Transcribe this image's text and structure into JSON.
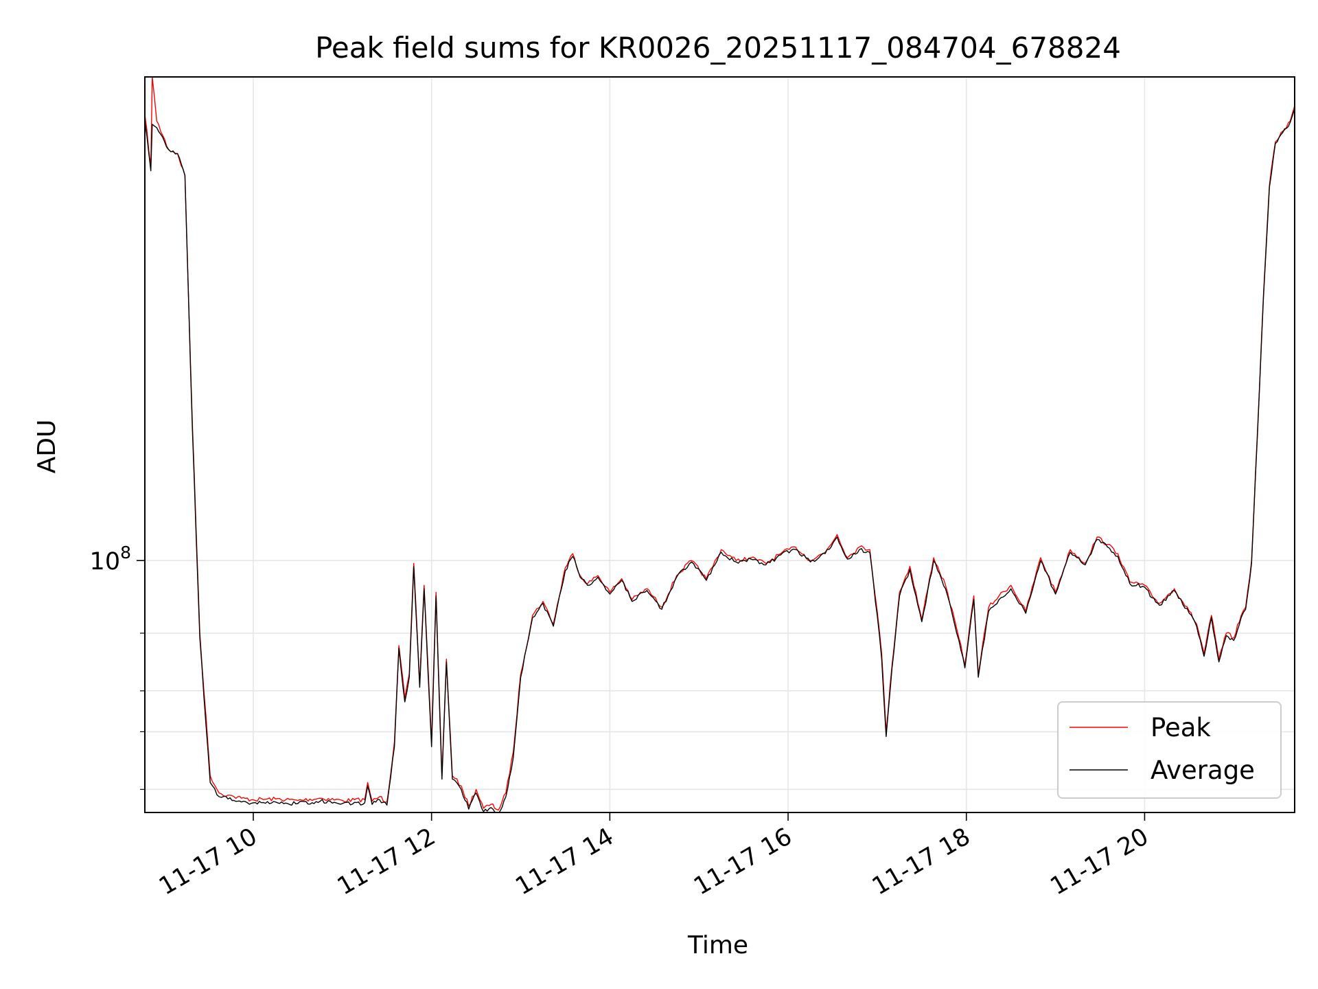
{
  "chart_data": {
    "type": "line",
    "title": "Peak field sums for KR0026_20251117_084704_678824",
    "xlabel": "Time",
    "ylabel": "ADU",
    "yscale": "log",
    "xlim": [
      "2025-11-17 08:47",
      "2025-11-17 21:41"
    ],
    "ylim": [
      17000000,
      3000000000
    ],
    "x_ticks": [
      "11-17 10",
      "11-17 12",
      "11-17 14",
      "11-17 16",
      "11-17 18",
      "11-17 20"
    ],
    "y_ticks": [
      {
        "value": 100000000,
        "base": "10",
        "exponent": "8"
      }
    ],
    "y_minor_ticks": [
      20000000,
      30000000,
      40000000,
      60000000
    ],
    "grid": true,
    "legend_position": "lower right",
    "series": [
      {
        "name": "Peak",
        "color": "#ff0000",
        "x": [
          "2025-11-17 08:47",
          "2025-11-17 08:51",
          "2025-11-17 08:52",
          "2025-11-17 08:55",
          "2025-11-17 09:03",
          "2025-11-17 09:09",
          "2025-11-17 09:14",
          "2025-11-17 09:19",
          "2025-11-17 09:24",
          "2025-11-17 09:31",
          "2025-11-17 09:37",
          "2025-11-17 09:43",
          "2025-11-17 09:47",
          "2025-11-17 09:52",
          "2025-11-17 10:00",
          "2025-11-17 10:15",
          "2025-11-17 10:30",
          "2025-11-17 10:45",
          "2025-11-17 11:00",
          "2025-11-17 11:15",
          "2025-11-17 11:17",
          "2025-11-17 11:20",
          "2025-11-17 11:25",
          "2025-11-17 11:30",
          "2025-11-17 11:35",
          "2025-11-17 11:38",
          "2025-11-17 11:42",
          "2025-11-17 11:45",
          "2025-11-17 11:48",
          "2025-11-17 11:52",
          "2025-11-17 11:55",
          "2025-11-17 12:00",
          "2025-11-17 12:03",
          "2025-11-17 12:07",
          "2025-11-17 12:10",
          "2025-11-17 12:14",
          "2025-11-17 12:20",
          "2025-11-17 12:25",
          "2025-11-17 12:30",
          "2025-11-17 12:35",
          "2025-11-17 12:40",
          "2025-11-17 12:45",
          "2025-11-17 12:50",
          "2025-11-17 12:55",
          "2025-11-17 13:00",
          "2025-11-17 13:08",
          "2025-11-17 13:15",
          "2025-11-17 13:22",
          "2025-11-17 13:30",
          "2025-11-17 13:35",
          "2025-11-17 13:40",
          "2025-11-17 13:45",
          "2025-11-17 13:52",
          "2025-11-17 14:00",
          "2025-11-17 14:08",
          "2025-11-17 14:15",
          "2025-11-17 14:25",
          "2025-11-17 14:35",
          "2025-11-17 14:45",
          "2025-11-17 14:55",
          "2025-11-17 15:05",
          "2025-11-17 15:15",
          "2025-11-17 15:25",
          "2025-11-17 15:35",
          "2025-11-17 15:45",
          "2025-11-17 15:55",
          "2025-11-17 16:05",
          "2025-11-17 16:15",
          "2025-11-17 16:25",
          "2025-11-17 16:33",
          "2025-11-17 16:40",
          "2025-11-17 16:48",
          "2025-11-17 16:55",
          "2025-11-17 17:00",
          "2025-11-17 17:03",
          "2025-11-17 17:06",
          "2025-11-17 17:10",
          "2025-11-17 17:15",
          "2025-11-17 17:22",
          "2025-11-17 17:30",
          "2025-11-17 17:38",
          "2025-11-17 17:46",
          "2025-11-17 17:55",
          "2025-11-17 17:59",
          "2025-11-17 18:05",
          "2025-11-17 18:08",
          "2025-11-17 18:15",
          "2025-11-17 18:22",
          "2025-11-17 18:30",
          "2025-11-17 18:40",
          "2025-11-17 18:50",
          "2025-11-17 19:00",
          "2025-11-17 19:10",
          "2025-11-17 19:20",
          "2025-11-17 19:28",
          "2025-11-17 19:35",
          "2025-11-17 19:42",
          "2025-11-17 19:50",
          "2025-11-17 20:00",
          "2025-11-17 20:05",
          "2025-11-17 20:10",
          "2025-11-17 20:20",
          "2025-11-17 20:30",
          "2025-11-17 20:35",
          "2025-11-17 20:40",
          "2025-11-17 20:45",
          "2025-11-17 20:50",
          "2025-11-17 20:55",
          "2025-11-17 21:00",
          "2025-11-17 21:05",
          "2025-11-17 21:08",
          "2025-11-17 21:12",
          "2025-11-17 21:16",
          "2025-11-17 21:20",
          "2025-11-17 21:24",
          "2025-11-17 21:28",
          "2025-11-17 21:33",
          "2025-11-17 21:38",
          "2025-11-17 21:41"
        ],
        "values": [
          2300000000,
          1600000000,
          3000000000,
          2200000000,
          1800000000,
          1750000000,
          1500000000,
          260000000,
          60000000,
          22000000,
          19500000,
          19200000,
          19000000,
          18800000,
          18600000,
          18700000,
          18500000,
          18800000,
          18500000,
          18600000,
          21000000,
          18400000,
          19000000,
          18300000,
          28000000,
          55000000,
          38000000,
          45000000,
          98000000,
          42000000,
          84000000,
          28000000,
          80000000,
          22000000,
          50000000,
          22000000,
          20500000,
          17800000,
          20000000,
          17500000,
          18000000,
          17300000,
          19500000,
          26000000,
          45000000,
          68000000,
          75000000,
          64000000,
          95000000,
          105000000,
          90000000,
          85000000,
          90000000,
          80000000,
          88000000,
          76000000,
          82000000,
          72000000,
          90000000,
          100000000,
          88000000,
          108000000,
          100000000,
          102000000,
          98000000,
          105000000,
          110000000,
          100000000,
          106000000,
          120000000,
          102000000,
          110000000,
          108000000,
          70000000,
          52000000,
          30000000,
          48000000,
          80000000,
          96000000,
          66000000,
          102000000,
          84000000,
          58000000,
          48000000,
          78000000,
          45000000,
          72000000,
          78000000,
          84000000,
          70000000,
          102000000,
          80000000,
          108000000,
          98000000,
          118000000,
          112000000,
          105000000,
          86000000,
          84000000,
          78000000,
          74000000,
          82000000,
          70000000,
          64000000,
          52000000,
          68000000,
          50000000,
          60000000,
          58000000,
          68000000,
          72000000,
          100000000,
          250000000,
          650000000,
          1400000000,
          1900000000,
          2050000000,
          2200000000,
          2450000000
        ]
      },
      {
        "name": "Average",
        "color": "#000000",
        "x": [
          "2025-11-17 08:47",
          "2025-11-17 08:51",
          "2025-11-17 08:52",
          "2025-11-17 08:55",
          "2025-11-17 09:03",
          "2025-11-17 09:09",
          "2025-11-17 09:14",
          "2025-11-17 09:19",
          "2025-11-17 09:24",
          "2025-11-17 09:31",
          "2025-11-17 09:37",
          "2025-11-17 09:43",
          "2025-11-17 09:47",
          "2025-11-17 09:52",
          "2025-11-17 10:00",
          "2025-11-17 10:15",
          "2025-11-17 10:30",
          "2025-11-17 10:45",
          "2025-11-17 11:00",
          "2025-11-17 11:15",
          "2025-11-17 11:17",
          "2025-11-17 11:20",
          "2025-11-17 11:25",
          "2025-11-17 11:30",
          "2025-11-17 11:35",
          "2025-11-17 11:38",
          "2025-11-17 11:42",
          "2025-11-17 11:45",
          "2025-11-17 11:48",
          "2025-11-17 11:52",
          "2025-11-17 11:55",
          "2025-11-17 12:00",
          "2025-11-17 12:03",
          "2025-11-17 12:07",
          "2025-11-17 12:10",
          "2025-11-17 12:14",
          "2025-11-17 12:20",
          "2025-11-17 12:25",
          "2025-11-17 12:30",
          "2025-11-17 12:35",
          "2025-11-17 12:40",
          "2025-11-17 12:45",
          "2025-11-17 12:50",
          "2025-11-17 12:55",
          "2025-11-17 13:00",
          "2025-11-17 13:08",
          "2025-11-17 13:15",
          "2025-11-17 13:22",
          "2025-11-17 13:30",
          "2025-11-17 13:35",
          "2025-11-17 13:40",
          "2025-11-17 13:45",
          "2025-11-17 13:52",
          "2025-11-17 14:00",
          "2025-11-17 14:08",
          "2025-11-17 14:15",
          "2025-11-17 14:25",
          "2025-11-17 14:35",
          "2025-11-17 14:45",
          "2025-11-17 14:55",
          "2025-11-17 15:05",
          "2025-11-17 15:15",
          "2025-11-17 15:25",
          "2025-11-17 15:35",
          "2025-11-17 15:45",
          "2025-11-17 15:55",
          "2025-11-17 16:05",
          "2025-11-17 16:15",
          "2025-11-17 16:25",
          "2025-11-17 16:33",
          "2025-11-17 16:40",
          "2025-11-17 16:48",
          "2025-11-17 16:55",
          "2025-11-17 17:00",
          "2025-11-17 17:03",
          "2025-11-17 17:06",
          "2025-11-17 17:10",
          "2025-11-17 17:15",
          "2025-11-17 17:22",
          "2025-11-17 17:30",
          "2025-11-17 17:38",
          "2025-11-17 17:46",
          "2025-11-17 17:55",
          "2025-11-17 17:59",
          "2025-11-17 18:05",
          "2025-11-17 18:08",
          "2025-11-17 18:15",
          "2025-11-17 18:22",
          "2025-11-17 18:30",
          "2025-11-17 18:40",
          "2025-11-17 18:50",
          "2025-11-17 19:00",
          "2025-11-17 19:10",
          "2025-11-17 19:20",
          "2025-11-17 19:28",
          "2025-11-17 19:35",
          "2025-11-17 19:42",
          "2025-11-17 19:50",
          "2025-11-17 20:00",
          "2025-11-17 20:05",
          "2025-11-17 20:10",
          "2025-11-17 20:20",
          "2025-11-17 20:30",
          "2025-11-17 20:35",
          "2025-11-17 20:40",
          "2025-11-17 20:45",
          "2025-11-17 20:50",
          "2025-11-17 20:55",
          "2025-11-17 21:00",
          "2025-11-17 21:05",
          "2025-11-17 21:08",
          "2025-11-17 21:12",
          "2025-11-17 21:16",
          "2025-11-17 21:20",
          "2025-11-17 21:24",
          "2025-11-17 21:28",
          "2025-11-17 21:33",
          "2025-11-17 21:38",
          "2025-11-17 21:41"
        ],
        "values": [
          2200000000,
          1550000000,
          2150000000,
          2100000000,
          1800000000,
          1750000000,
          1500000000,
          250000000,
          58000000,
          21000000,
          19000000,
          18700000,
          18500000,
          18300000,
          18200000,
          18300000,
          18100000,
          18400000,
          18100000,
          18200000,
          20500000,
          18000000,
          18600000,
          17900000,
          27000000,
          54000000,
          37000000,
          44000000,
          96000000,
          41000000,
          82000000,
          27000000,
          78000000,
          21500000,
          49000000,
          21500000,
          20000000,
          17400000,
          19500000,
          17100000,
          17600000,
          16900000,
          19000000,
          25000000,
          44000000,
          67000000,
          74000000,
          63000000,
          93000000,
          103000000,
          89000000,
          84000000,
          89000000,
          79000000,
          87000000,
          75000000,
          81000000,
          71000000,
          89000000,
          99000000,
          87000000,
          106000000,
          99000000,
          101000000,
          97000000,
          104000000,
          108000000,
          99000000,
          105000000,
          118000000,
          101000000,
          108000000,
          106000000,
          68000000,
          50000000,
          29000000,
          47000000,
          78000000,
          94000000,
          65000000,
          100000000,
          82000000,
          57000000,
          47000000,
          76000000,
          44000000,
          70000000,
          76000000,
          82000000,
          69000000,
          100000000,
          79000000,
          106000000,
          97000000,
          116000000,
          110000000,
          103000000,
          85000000,
          83000000,
          77000000,
          73000000,
          81000000,
          69000000,
          63000000,
          51000000,
          67000000,
          49000000,
          59000000,
          57000000,
          67000000,
          71000000,
          98000000,
          245000000,
          640000000,
          1380000000,
          1880000000,
          2030000000,
          2180000000,
          2400000000
        ]
      }
    ]
  }
}
